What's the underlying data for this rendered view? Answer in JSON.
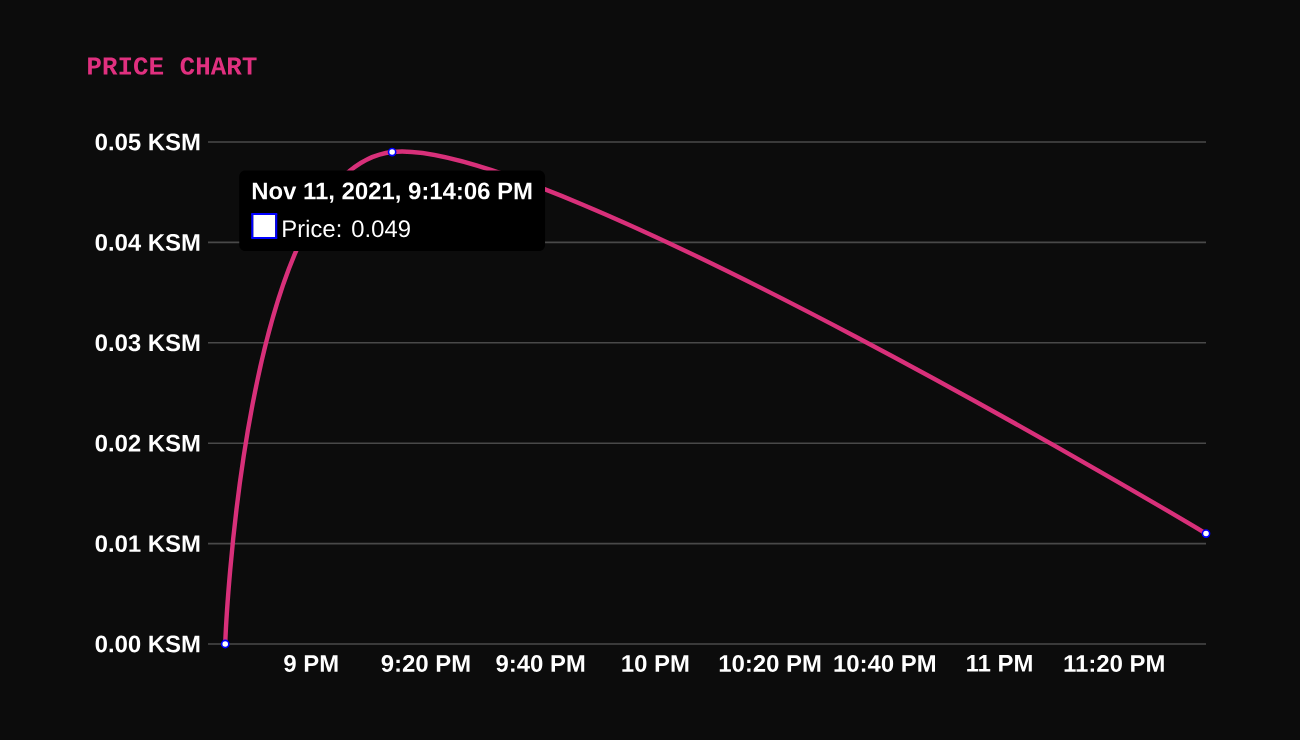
{
  "chart_data": {
    "type": "line",
    "title": "PRICE CHART",
    "x": [
      "2021-11-11T20:45",
      "2021-11-11T21:14:06",
      "2021-11-11T23:36"
    ],
    "series": [
      {
        "color": "#d8307a",
        "values": [
          0,
          0.049,
          0.011
        ]
      }
    ],
    "xlim": [
      "2021-11-11T20:42",
      "2021-11-11T23:36"
    ],
    "xticks": [
      {
        "value": "2021-11-11T21:00",
        "label": "9 PM"
      },
      {
        "value": "2021-11-11T21:20",
        "label": "9:20 PM"
      },
      {
        "value": "2021-11-11T21:40",
        "label": "9:40 PM"
      },
      {
        "value": "2021-11-11T22:00",
        "label": "10 PM"
      },
      {
        "value": "2021-11-11T22:20",
        "label": "10:20 PM"
      },
      {
        "value": "2021-11-11T22:40",
        "label": "10:40 PM"
      },
      {
        "value": "2021-11-11T23:00",
        "label": "11 PM"
      },
      {
        "value": "2021-11-11T23:20",
        "label": "11:20 PM"
      }
    ],
    "ylim": [
      0,
      0.05
    ],
    "yticks": [
      {
        "value": 0,
        "label": "0.00 KSM"
      },
      {
        "value": 0.01,
        "label": "0.01 KSM"
      },
      {
        "value": 0.02,
        "label": "0.02 KSM"
      },
      {
        "value": 0.03,
        "label": "0.03 KSM"
      },
      {
        "value": 0.04,
        "label": "0.04 KSM"
      },
      {
        "value": 0.05,
        "label": "0.05 KSM"
      }
    ],
    "grid": "y",
    "marker": "circle",
    "annotations": [
      {
        "text": "Nov 11, 2021, 9:14:06 PM",
        "x": "2021-11-11T21:14:06",
        "y": 0.049
      },
      "Price: 0.049"
    ]
  }
}
